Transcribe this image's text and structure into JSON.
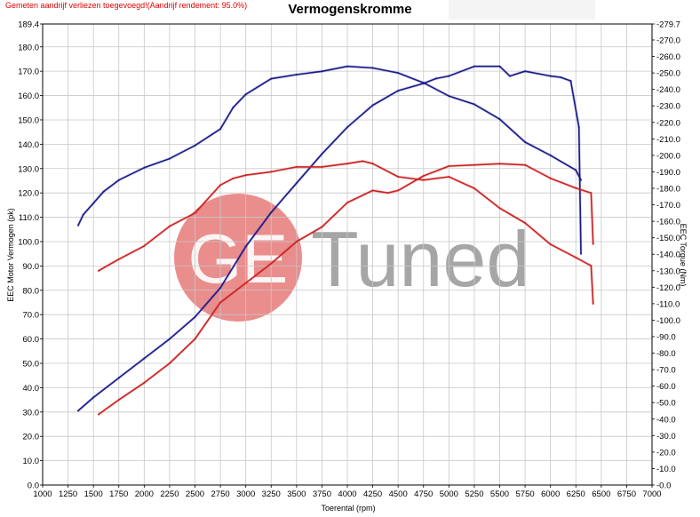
{
  "header": {
    "note": "Gemeten aandrijf verliezen toegevoegd!(Aandrijf rendement: 95.0%)"
  },
  "watermark": {
    "logo_text": "GE",
    "brand_text": "Tuned",
    "logo_color": "#d83030",
    "text_color": "#909090"
  },
  "chart_data": {
    "type": "line",
    "title": "Vermogenskromme",
    "xlabel": "Toerental (rpm)",
    "ylabel_left": "EEC Motor Vermogen (pk)",
    "ylabel_right": "EEC Torque (Nm)",
    "xlim": [
      1000,
      7000
    ],
    "ylim_left": [
      0,
      189.4
    ],
    "ylim_right": [
      0,
      279.7
    ],
    "x_ticks": [
      "1000",
      "1250",
      "1500",
      "1750",
      "2000",
      "2250",
      "2500",
      "2750",
      "3000",
      "3250",
      "3500",
      "3750",
      "4000",
      "4250",
      "4500",
      "4750",
      "5000",
      "5250",
      "5500",
      "5750",
      "6000",
      "6250",
      "6500",
      "6750",
      "7000"
    ],
    "y_left_ticks": [
      "0.0",
      "10.0",
      "20.0",
      "30.0",
      "40.0",
      "50.0",
      "60.0",
      "70.0",
      "80.0",
      "90.0",
      "100.0",
      "110.0",
      "120.0",
      "130.0",
      "140.0",
      "150.0",
      "160.0",
      "170.0",
      "180.0",
      "189.4"
    ],
    "y_right_ticks": [
      "0.0",
      "10.0",
      "20.0",
      "30.0",
      "40.0",
      "50.0",
      "60.0",
      "70.0",
      "80.0",
      "90.0",
      "100.0",
      "110.0",
      "120.0",
      "130.0",
      "140.0",
      "150.0",
      "160.0",
      "170.0",
      "180.0",
      "190.0",
      "200.0",
      "210.0",
      "220.0",
      "230.0",
      "240.0",
      "250.0",
      "260.0",
      "270.0",
      "279.7"
    ],
    "grid": true,
    "colors": {
      "blue": "#1a1a8a",
      "red": "#cc2222"
    },
    "series": [
      {
        "color": "blue",
        "axis": "right",
        "quantity": "torque",
        "points": [
          [
            1350,
            157.5
          ],
          [
            1400,
            164
          ],
          [
            1500,
            171
          ],
          [
            1600,
            178
          ],
          [
            1750,
            185
          ],
          [
            2000,
            192.5
          ],
          [
            2250,
            198
          ],
          [
            2500,
            206
          ],
          [
            2750,
            216
          ],
          [
            2875,
            229
          ],
          [
            3000,
            237
          ],
          [
            3250,
            246.5
          ],
          [
            3500,
            249
          ],
          [
            3750,
            251
          ],
          [
            4000,
            254
          ],
          [
            4250,
            253
          ],
          [
            4500,
            250
          ],
          [
            4750,
            244
          ],
          [
            5000,
            236
          ],
          [
            5250,
            231
          ],
          [
            5500,
            222
          ],
          [
            5750,
            208
          ],
          [
            6000,
            200
          ],
          [
            6250,
            191
          ],
          [
            6300,
            185
          ]
        ]
      },
      {
        "color": "blue",
        "axis": "left",
        "quantity": "power",
        "points": [
          [
            1350,
            30.5
          ],
          [
            1500,
            36
          ],
          [
            1750,
            44
          ],
          [
            2000,
            52
          ],
          [
            2250,
            60
          ],
          [
            2500,
            69
          ],
          [
            2750,
            81
          ],
          [
            3000,
            98
          ],
          [
            3250,
            112
          ],
          [
            3500,
            124
          ],
          [
            3750,
            136
          ],
          [
            4000,
            147
          ],
          [
            4250,
            156
          ],
          [
            4500,
            162
          ],
          [
            4750,
            165
          ],
          [
            4875,
            167
          ],
          [
            5000,
            168
          ],
          [
            5250,
            172
          ],
          [
            5500,
            172
          ],
          [
            5600,
            168
          ],
          [
            5750,
            170
          ],
          [
            6000,
            168
          ],
          [
            6100,
            167.5
          ],
          [
            6200,
            166
          ],
          [
            6280,
            147
          ],
          [
            6300,
            95
          ]
        ]
      },
      {
        "color": "red",
        "axis": "right",
        "quantity": "torque",
        "points": [
          [
            1550,
            130
          ],
          [
            1750,
            137
          ],
          [
            2000,
            145
          ],
          [
            2250,
            157
          ],
          [
            2500,
            165
          ],
          [
            2750,
            182
          ],
          [
            2875,
            186
          ],
          [
            3000,
            188
          ],
          [
            3250,
            190
          ],
          [
            3500,
            193
          ],
          [
            3750,
            193
          ],
          [
            4000,
            195
          ],
          [
            4150,
            196.5
          ],
          [
            4250,
            195
          ],
          [
            4500,
            187
          ],
          [
            4750,
            185
          ],
          [
            5000,
            187
          ],
          [
            5250,
            180
          ],
          [
            5500,
            168
          ],
          [
            5750,
            159
          ],
          [
            6000,
            146
          ],
          [
            6250,
            138
          ],
          [
            6400,
            133
          ],
          [
            6420,
            110
          ]
        ]
      },
      {
        "color": "red",
        "axis": "left",
        "quantity": "power",
        "points": [
          [
            1550,
            29
          ],
          [
            1750,
            35
          ],
          [
            2000,
            42
          ],
          [
            2250,
            50
          ],
          [
            2500,
            60
          ],
          [
            2750,
            75
          ],
          [
            3000,
            83
          ],
          [
            3250,
            91
          ],
          [
            3500,
            100
          ],
          [
            3750,
            106
          ],
          [
            4000,
            116
          ],
          [
            4250,
            121
          ],
          [
            4400,
            120
          ],
          [
            4500,
            121
          ],
          [
            4750,
            127
          ],
          [
            5000,
            131
          ],
          [
            5250,
            131.5
          ],
          [
            5500,
            132
          ],
          [
            5750,
            131.5
          ],
          [
            6000,
            126
          ],
          [
            6250,
            122
          ],
          [
            6400,
            120
          ],
          [
            6420,
            99
          ]
        ]
      }
    ]
  }
}
